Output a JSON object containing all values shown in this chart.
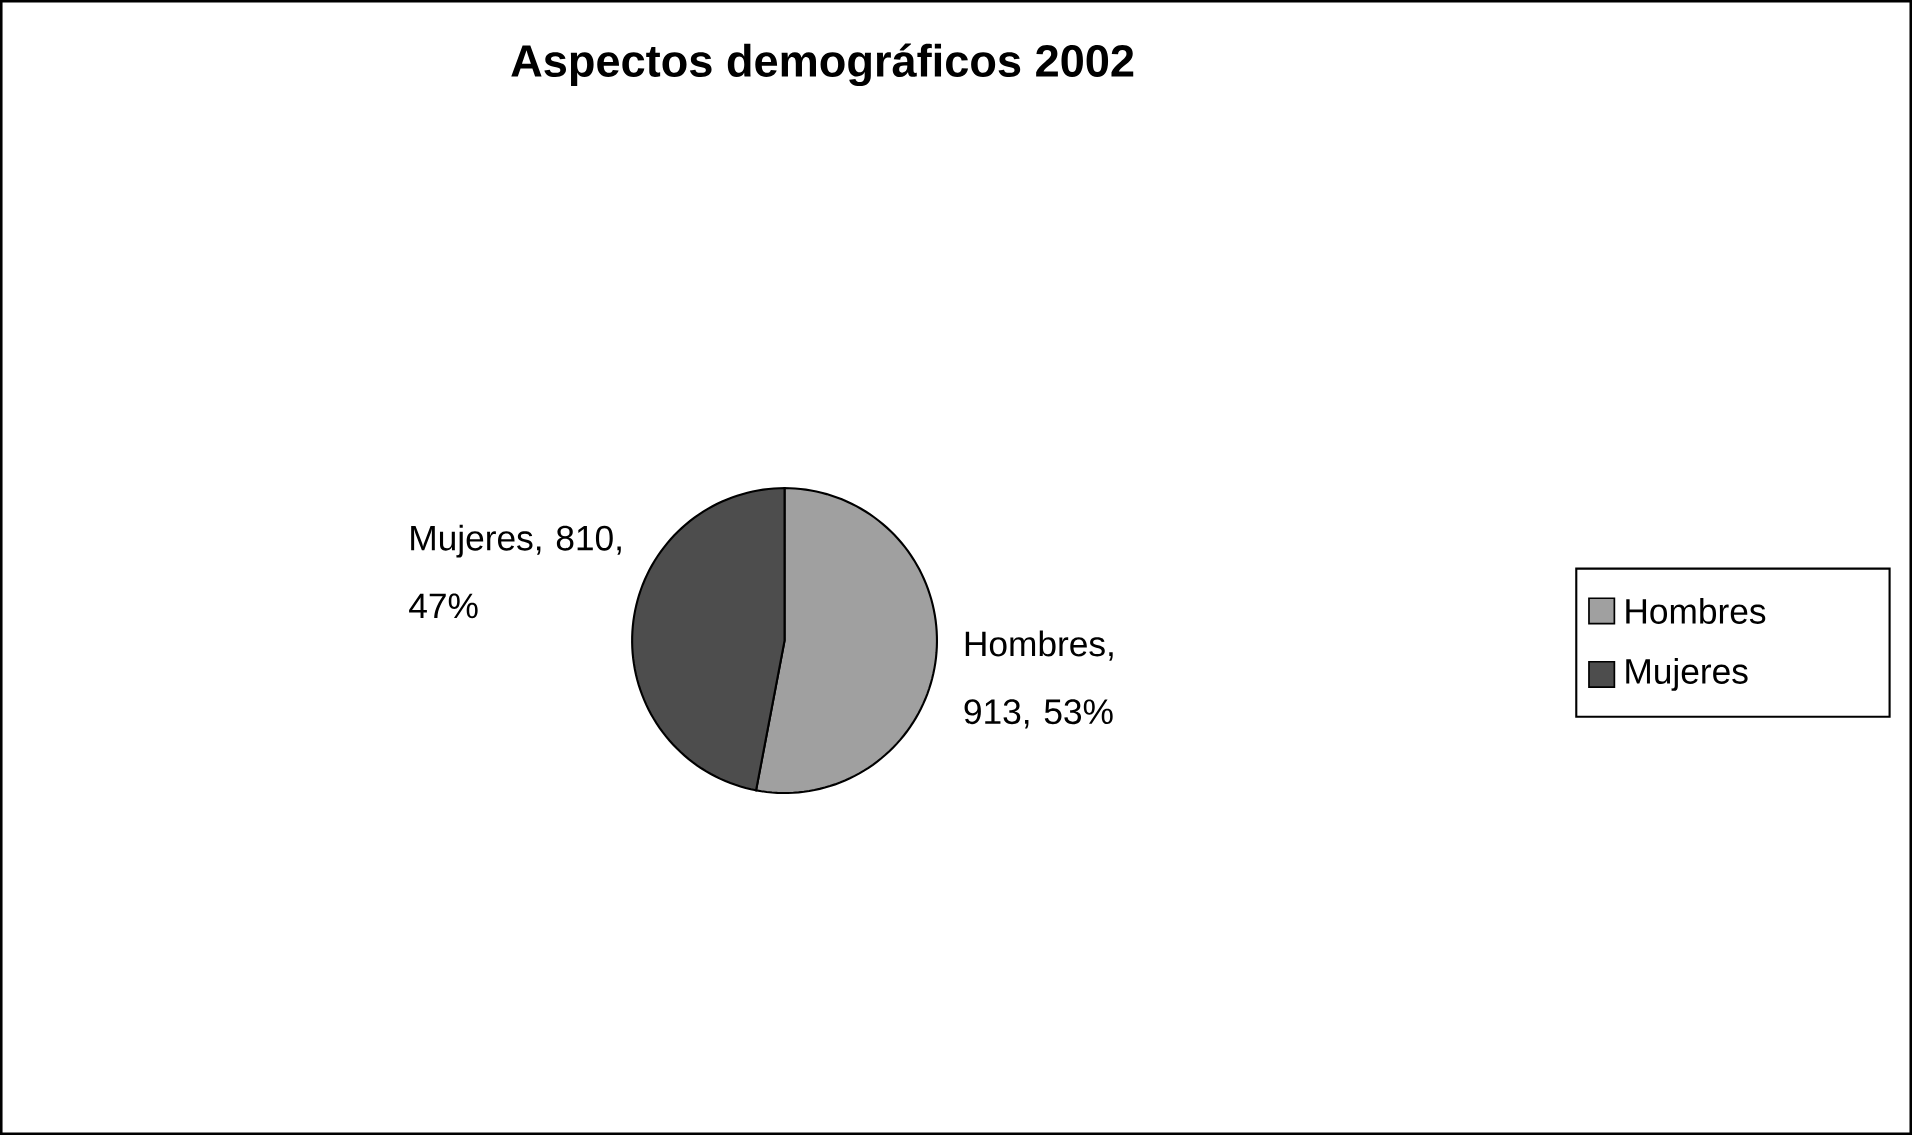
{
  "chart_data": {
    "type": "pie",
    "title": "Aspectos demográficos 2002",
    "categories": [
      "Hombres",
      "Mujeres"
    ],
    "values": [
      913,
      810
    ],
    "colors": [
      "#a0a0a0",
      "#4d4d4d"
    ],
    "value_labels": [
      "Hombres, 913, 53%",
      "Mujeres, 810, 47%"
    ],
    "legend": "right"
  }
}
